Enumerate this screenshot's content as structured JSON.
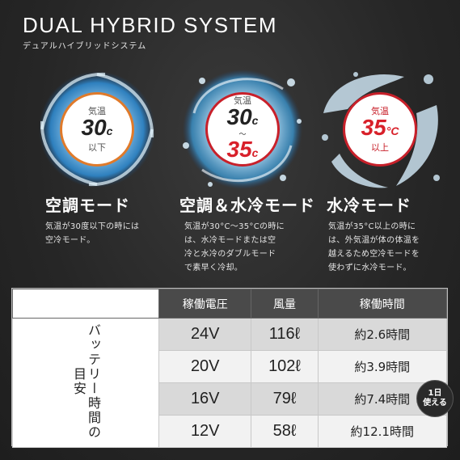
{
  "header": {
    "title": "DUAL HYBRID SYSTEM",
    "subtitle": "デュアルハイブリッドシステム"
  },
  "modes": [
    {
      "temp_top_label": "気温",
      "temp_value": "30",
      "temp_unit": "c",
      "temp_bottom_label": "以下",
      "name": "空調モード",
      "description_lines": [
        "気温が30度以下の時には",
        "空冷モード。"
      ],
      "accent_color": "#e07a2a"
    },
    {
      "temp_top_label": "気温",
      "temp_value_1": "30",
      "temp_unit_1": "c",
      "temp_separator": "～",
      "temp_value_2": "35",
      "temp_unit_2": "c",
      "name": "空調＆水冷モード",
      "description_lines": [
        "気温が30°C～35°Cの時に",
        "は、水冷モードまたは空",
        "冷と水冷のダブルモード",
        "で素早く冷却。"
      ],
      "accent_color": "#c8202a"
    },
    {
      "temp_top_label": "気温",
      "temp_value": "35",
      "temp_unit": "°C",
      "temp_bottom_label": "以上",
      "name": "水冷モード",
      "description_lines": [
        "気温が35°C以上の時に",
        "は、外気温が体の体温を",
        "越えるため空冷モードを",
        "使わずに水冷モード。"
      ],
      "accent_color": "#c8202a"
    }
  ],
  "table": {
    "side_label": "バッテリー時間の目安",
    "headers": [
      "稼働電圧",
      "風量",
      "稼働時間"
    ],
    "rows": [
      [
        "24V",
        "116ℓ",
        "約2.6時間"
      ],
      [
        "20V",
        "102ℓ",
        "約3.9時間"
      ],
      [
        "16V",
        "79ℓ",
        "約7.4時間"
      ],
      [
        "12V",
        "58ℓ",
        "約12.1時間"
      ]
    ]
  },
  "day_badge": {
    "line1": "1日",
    "line2": "使える"
  }
}
